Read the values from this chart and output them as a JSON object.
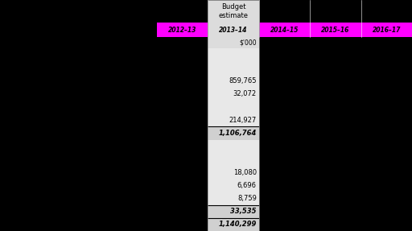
{
  "title_top": "Budget\nestimate",
  "columns": [
    "2012–13",
    "2013–14",
    "2014–15",
    "2015–16",
    "2016–17"
  ],
  "col_subtitle": "$'000",
  "header_bg": "#FF00FF",
  "budget_header_bg": "#DCDCDC",
  "budget_cell_bg": "#E8E8E8",
  "bold_row_bg": "#D0D0D0",
  "dark_bg": "#000000",
  "rows": [
    {
      "text": "",
      "bold": false,
      "line_above": false
    },
    {
      "text": "",
      "bold": false,
      "line_above": false
    },
    {
      "text": "859,765",
      "bold": false,
      "line_above": false
    },
    {
      "text": "32,072",
      "bold": false,
      "line_above": false
    },
    {
      "text": "",
      "bold": false,
      "line_above": false
    },
    {
      "text": "214,927",
      "bold": false,
      "line_above": false
    },
    {
      "text": "1,106,764",
      "bold": true,
      "line_above": true
    },
    {
      "text": "",
      "bold": false,
      "line_above": false
    },
    {
      "text": "",
      "bold": false,
      "line_above": false
    },
    {
      "text": "18,080",
      "bold": false,
      "line_above": false
    },
    {
      "text": "6,696",
      "bold": false,
      "line_above": false
    },
    {
      "text": "8,759",
      "bold": false,
      "line_above": false
    },
    {
      "text": "33,535",
      "bold": true,
      "line_above": true
    },
    {
      "text": "1,140,299",
      "bold": true,
      "line_above": true
    }
  ],
  "fig_width": 5.12,
  "fig_height": 2.87,
  "dpi": 100
}
